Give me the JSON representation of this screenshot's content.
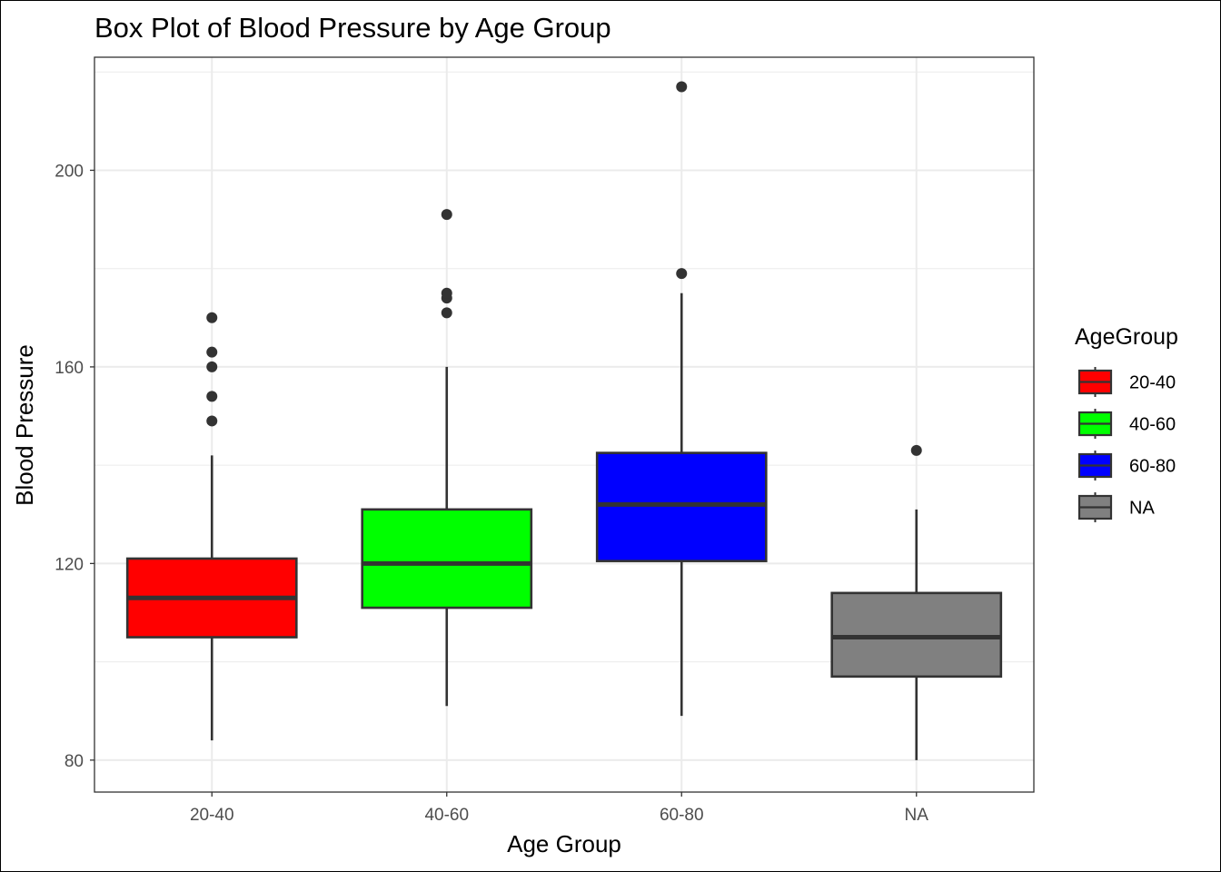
{
  "chart_data": {
    "type": "boxplot",
    "title": "Box Plot of Blood Pressure by Age Group",
    "xlabel": "Age Group",
    "ylabel": "Blood Pressure",
    "ylim": [
      73.5,
      223
    ],
    "yticks": [
      80,
      120,
      160,
      200
    ],
    "grid": true,
    "legend": {
      "title": "AgeGroup",
      "position": "right"
    },
    "categories": [
      "20-40",
      "40-60",
      "60-80",
      "NA"
    ],
    "series": [
      {
        "name": "20-40",
        "color": "#ff0000",
        "whisker_low": 84,
        "q1": 105,
        "median": 113,
        "q3": 121,
        "whisker_high": 142,
        "outliers": [
          149,
          154,
          160,
          163,
          170
        ]
      },
      {
        "name": "40-60",
        "color": "#00ff00",
        "whisker_low": 91,
        "q1": 111,
        "median": 120,
        "q3": 131,
        "whisker_high": 160,
        "outliers": [
          171,
          174,
          175,
          191
        ]
      },
      {
        "name": "60-80",
        "color": "#0000ff",
        "whisker_low": 89,
        "q1": 120.5,
        "median": 132,
        "q3": 142.5,
        "whisker_high": 175,
        "outliers": [
          179,
          217
        ]
      },
      {
        "name": "NA",
        "color": "#808080",
        "whisker_low": 80,
        "q1": 97,
        "median": 105,
        "q3": 114,
        "whisker_high": 131,
        "outliers": [
          143
        ]
      }
    ]
  }
}
